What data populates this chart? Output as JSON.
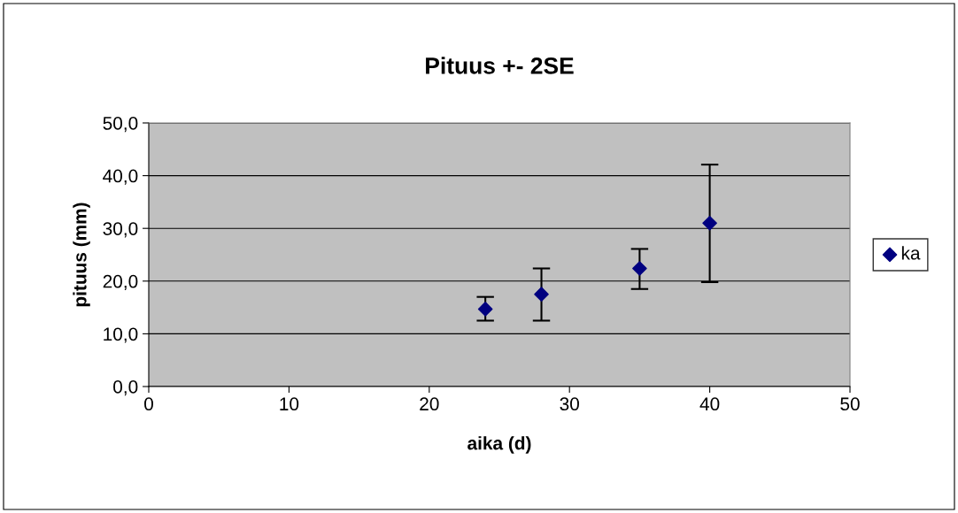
{
  "chart_data": {
    "type": "scatter",
    "title": "Pituus +- 2SE",
    "xlabel": "aika (d)",
    "ylabel": "pituus (mm)",
    "x": [
      24,
      28,
      35,
      40
    ],
    "series": [
      {
        "name": "ka",
        "color": "#000080",
        "values": [
          14.7,
          17.5,
          22.4,
          31.0
        ],
        "errors": [
          [
            12.5,
            17.0
          ],
          [
            12.5,
            22.4
          ],
          [
            18.5,
            26.1
          ],
          [
            19.8,
            42.1
          ]
        ]
      }
    ],
    "xlim": [
      0,
      50
    ],
    "xticks": [
      0,
      10,
      20,
      30,
      40,
      50
    ],
    "ylim": [
      0,
      50
    ],
    "yticks": [
      {
        "value": 0,
        "label": "0,0"
      },
      {
        "value": 10,
        "label": "10,0"
      },
      {
        "value": 20,
        "label": "20,0"
      },
      {
        "value": 30,
        "label": "30,0"
      },
      {
        "value": 40,
        "label": "40,0"
      },
      {
        "value": 50,
        "label": "50,0"
      }
    ],
    "grid": "y",
    "legend": "right",
    "marker": "diamond"
  }
}
